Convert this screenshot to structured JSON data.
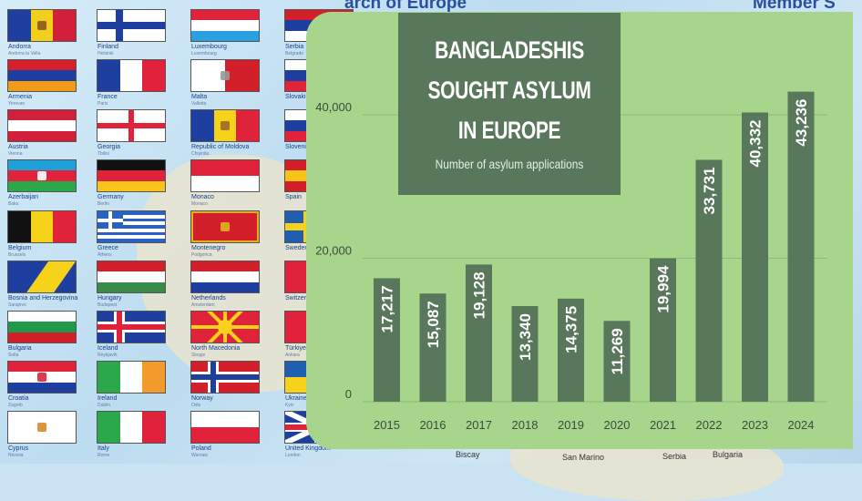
{
  "background": {
    "header_left": "arch of Europe",
    "header_right": "Member S",
    "map_labels": [
      "Biscay",
      "San Marino",
      "Serbia",
      "Bulgaria"
    ],
    "flags": [
      {
        "name": "Andorra",
        "capital": "Andorra la Vella",
        "col": 0,
        "row": 0,
        "kind": "v3",
        "colors": [
          "#1f3fa0",
          "#f2cf1a",
          "#d21f3a"
        ],
        "emblem": "#8b5a1a"
      },
      {
        "name": "Armenia",
        "capital": "Yerevan",
        "col": 0,
        "row": 1,
        "kind": "h3",
        "colors": [
          "#d61f2a",
          "#1f3fa0",
          "#f29a1a"
        ]
      },
      {
        "name": "Austria",
        "capital": "Vienna",
        "col": 0,
        "row": 2,
        "kind": "h3",
        "colors": [
          "#d21f3a",
          "#ffffff",
          "#d21f3a"
        ]
      },
      {
        "name": "Azerbaijan",
        "capital": "Baku",
        "col": 0,
        "row": 3,
        "kind": "h3",
        "colors": [
          "#1fa0d6",
          "#e0233a",
          "#2ba84a"
        ],
        "emblem": "#ffffff"
      },
      {
        "name": "Belgium",
        "capital": "Brussels",
        "col": 0,
        "row": 4,
        "kind": "v3",
        "colors": [
          "#111111",
          "#f7d21a",
          "#e0233a"
        ]
      },
      {
        "name": "Bosnia and Herzegovina",
        "capital": "Sarajevo",
        "col": 0,
        "row": 5,
        "kind": "diag",
        "colors": [
          "#1f3fa0",
          "#f7d21a"
        ]
      },
      {
        "name": "Bulgaria",
        "capital": "Sofia",
        "col": 0,
        "row": 6,
        "kind": "h3",
        "colors": [
          "#ffffff",
          "#1f9a4a",
          "#d21f2a"
        ]
      },
      {
        "name": "Croatia",
        "capital": "Zagreb",
        "col": 0,
        "row": 7,
        "kind": "h3",
        "colors": [
          "#e0233a",
          "#ffffff",
          "#1f3fa0"
        ],
        "emblem": "#e0233a"
      },
      {
        "name": "Cyprus",
        "capital": "Nicosia",
        "col": 0,
        "row": 8,
        "kind": "solid",
        "colors": [
          "#ffffff"
        ],
        "emblem": "#d88a2a"
      },
      {
        "name": "Finland",
        "capital": "Helsinki",
        "col": 1,
        "row": 0,
        "kind": "nordic",
        "colors": [
          "#ffffff",
          "#1f3fa0"
        ]
      },
      {
        "name": "France",
        "capital": "Paris",
        "col": 1,
        "row": 1,
        "kind": "v3",
        "colors": [
          "#1f3fa0",
          "#ffffff",
          "#e0233a"
        ]
      },
      {
        "name": "Georgia",
        "capital": "Tbilisi",
        "col": 1,
        "row": 2,
        "kind": "cross",
        "colors": [
          "#ffffff",
          "#e0233a"
        ]
      },
      {
        "name": "Germany",
        "capital": "Berlin",
        "col": 1,
        "row": 3,
        "kind": "h3",
        "colors": [
          "#111111",
          "#e0233a",
          "#f7c51a"
        ]
      },
      {
        "name": "Greece",
        "capital": "Athens",
        "col": 1,
        "row": 4,
        "kind": "greece",
        "colors": [
          "#2a62c4",
          "#ffffff"
        ]
      },
      {
        "name": "Hungary",
        "capital": "Budapest",
        "col": 1,
        "row": 5,
        "kind": "h3",
        "colors": [
          "#d21f2a",
          "#ffffff",
          "#3a8a4a"
        ]
      },
      {
        "name": "Iceland",
        "capital": "Reykjavík",
        "col": 1,
        "row": 6,
        "kind": "nordic2",
        "colors": [
          "#1f3fa0",
          "#ffffff",
          "#e0233a"
        ]
      },
      {
        "name": "Ireland",
        "capital": "Dublin",
        "col": 1,
        "row": 7,
        "kind": "v3",
        "colors": [
          "#2aa84a",
          "#ffffff",
          "#f29a2a"
        ]
      },
      {
        "name": "Italy",
        "capital": "Rome",
        "col": 1,
        "row": 8,
        "kind": "v3",
        "colors": [
          "#2aa84a",
          "#ffffff",
          "#e0233a"
        ]
      },
      {
        "name": "Luxembourg",
        "capital": "Luxembourg",
        "col": 2,
        "row": 0,
        "kind": "h3",
        "colors": [
          "#e0233a",
          "#ffffff",
          "#2aa0e0"
        ]
      },
      {
        "name": "Malta",
        "capital": "Valletta",
        "col": 2,
        "row": 1,
        "kind": "v2",
        "colors": [
          "#ffffff",
          "#d21f2a"
        ],
        "emblem": "#999999"
      },
      {
        "name": "Republic of Moldova",
        "capital": "Chișinău",
        "col": 2,
        "row": 2,
        "kind": "v3",
        "colors": [
          "#1f3fa0",
          "#f7d21a",
          "#e0233a"
        ],
        "emblem": "#9a6a2a"
      },
      {
        "name": "Monaco",
        "capital": "Monaco",
        "col": 2,
        "row": 3,
        "kind": "h2",
        "colors": [
          "#e0233a",
          "#ffffff"
        ]
      },
      {
        "name": "Montenegro",
        "capital": "Podgorica",
        "col": 2,
        "row": 4,
        "kind": "border",
        "colors": [
          "#d21f2a",
          "#e0b020"
        ],
        "emblem": "#e0b020"
      },
      {
        "name": "Netherlands",
        "capital": "Amsterdam",
        "col": 2,
        "row": 5,
        "kind": "h3",
        "colors": [
          "#d21f2a",
          "#ffffff",
          "#1f3fa0"
        ]
      },
      {
        "name": "North Macedonia",
        "capital": "Skopje",
        "col": 2,
        "row": 6,
        "kind": "sun",
        "colors": [
          "#e0233a",
          "#f7d21a"
        ]
      },
      {
        "name": "Norway",
        "capital": "Oslo",
        "col": 2,
        "row": 7,
        "kind": "nordic2",
        "colors": [
          "#d21f2a",
          "#ffffff",
          "#1f3fa0"
        ]
      },
      {
        "name": "Poland",
        "capital": "Warsaw",
        "col": 2,
        "row": 8,
        "kind": "h2",
        "colors": [
          "#ffffff",
          "#e0233a"
        ]
      },
      {
        "name": "Serbia",
        "capital": "Belgrade",
        "col": 3,
        "row": 0,
        "kind": "h3",
        "colors": [
          "#d21f2a",
          "#1f3fa0",
          "#ffffff"
        ],
        "emblem": "#d21f2a"
      },
      {
        "name": "Slovakia",
        "capital": "",
        "col": 3,
        "row": 1,
        "kind": "h3",
        "colors": [
          "#ffffff",
          "#1f3fa0",
          "#e0233a"
        ]
      },
      {
        "name": "Slovenia",
        "capital": "",
        "col": 3,
        "row": 2,
        "kind": "h3",
        "colors": [
          "#ffffff",
          "#1f3fa0",
          "#e0233a"
        ]
      },
      {
        "name": "Spain",
        "capital": "",
        "col": 3,
        "row": 3,
        "kind": "h3",
        "colors": [
          "#d21f2a",
          "#f7c51a",
          "#d21f2a"
        ]
      },
      {
        "name": "Sweden",
        "capital": "",
        "col": 3,
        "row": 4,
        "kind": "nordic",
        "colors": [
          "#1f5fb0",
          "#f7d21a"
        ]
      },
      {
        "name": "Switzerland",
        "capital": "",
        "col": 3,
        "row": 5,
        "kind": "solid",
        "colors": [
          "#e0233a"
        ]
      },
      {
        "name": "Türkiye",
        "capital": "Ankara",
        "col": 3,
        "row": 6,
        "kind": "solid",
        "colors": [
          "#e0233a"
        ]
      },
      {
        "name": "Ukraine",
        "capital": "Kyiv",
        "col": 3,
        "row": 7,
        "kind": "h2",
        "colors": [
          "#1f5fb0",
          "#f7d21a"
        ]
      },
      {
        "name": "United Kingdom",
        "capital": "London",
        "col": 3,
        "row": 8,
        "kind": "uk",
        "colors": [
          "#1f3fa0",
          "#ffffff",
          "#e0233a"
        ]
      }
    ]
  },
  "chart_data": {
    "type": "bar",
    "title_lines": [
      "BANGLADESHIS",
      "SOUGHT ASYLUM",
      "IN EUROPE"
    ],
    "subtitle": "Number of asylum applications",
    "categories": [
      "2015",
      "2016",
      "2017",
      "2018",
      "2019",
      "2020",
      "2021",
      "2022",
      "2023",
      "2024"
    ],
    "values": [
      17217,
      15087,
      19128,
      13340,
      14375,
      11269,
      19994,
      33731,
      40332,
      43236
    ],
    "value_labels": [
      "17,217",
      "15,087",
      "19,128",
      "13,340",
      "14,375",
      "11,269",
      "19,994",
      "33,731",
      "40,332",
      "43,236"
    ],
    "y_ticks": [
      0,
      20000,
      40000
    ],
    "y_tick_labels": [
      "0",
      "20,000",
      "40,000"
    ],
    "ylim": [
      0,
      47000
    ],
    "grid": true,
    "colors": {
      "panel": "#a7d58b",
      "bar": "#58775b",
      "bar_text": "#ffffff",
      "axis_text": "#3c4a3c",
      "grid": "#8fb87a"
    }
  }
}
